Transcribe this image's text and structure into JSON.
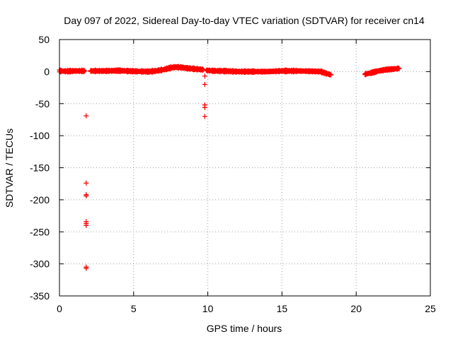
{
  "chart_data": {
    "type": "scatter",
    "title": "Day 097 of 2022, Sidereal Day-to-day VTEC variation (SDTVAR) for receiver cn14",
    "xlabel": "GPS time / hours",
    "ylabel": "SDTVAR / TECUs",
    "xlim": [
      0,
      25
    ],
    "ylim": [
      -350,
      50
    ],
    "xticks": [
      0,
      5,
      10,
      15,
      20,
      25
    ],
    "yticks": [
      50,
      0,
      -50,
      -100,
      -150,
      -200,
      -250,
      -300,
      -350
    ],
    "grid": true,
    "marker": "plus",
    "color": "#ff0000",
    "series": [
      {
        "name": "SDTVAR",
        "dense_segments": [
          {
            "x": [
              0.0,
              0.5,
              1.0,
              1.5,
              1.7
            ],
            "y": [
              1,
              0.5,
              1,
              1,
              1
            ]
          },
          {
            "x": [
              2.1,
              3.0,
              4.0,
              5.0,
              6.0,
              6.5,
              7.0,
              7.5,
              7.8,
              8.2,
              8.7,
              9.2,
              9.7
            ],
            "y": [
              1,
              1,
              1.5,
              0.5,
              0,
              1,
              3,
              6,
              7,
              6.5,
              5,
              4,
              3
            ]
          },
          {
            "x": [
              9.9,
              10.5,
              11.0,
              12.0,
              13.0,
              14.0,
              15.0,
              16.0,
              17.0,
              17.6,
              18.0,
              18.3
            ],
            "y": [
              2,
              1,
              1,
              0,
              0,
              0,
              1,
              1,
              0.5,
              0,
              -3,
              -5
            ]
          },
          {
            "x": [
              20.6,
              21.0,
              21.5,
              22.0,
              22.5,
              22.9
            ],
            "y": [
              -4,
              -2,
              1,
              3,
              4,
              5
            ]
          }
        ],
        "outliers": [
          {
            "x": 1.8,
            "y": -69
          },
          {
            "x": 1.8,
            "y": -174
          },
          {
            "x": 1.8,
            "y": -192
          },
          {
            "x": 1.8,
            "y": -194
          },
          {
            "x": 1.8,
            "y": -234
          },
          {
            "x": 1.8,
            "y": -237
          },
          {
            "x": 1.8,
            "y": -240
          },
          {
            "x": 1.8,
            "y": -305
          },
          {
            "x": 1.8,
            "y": -307
          },
          {
            "x": 9.8,
            "y": -7
          },
          {
            "x": 9.8,
            "y": -20
          },
          {
            "x": 9.8,
            "y": -52
          },
          {
            "x": 9.8,
            "y": -56
          },
          {
            "x": 9.8,
            "y": -70
          }
        ]
      }
    ]
  }
}
